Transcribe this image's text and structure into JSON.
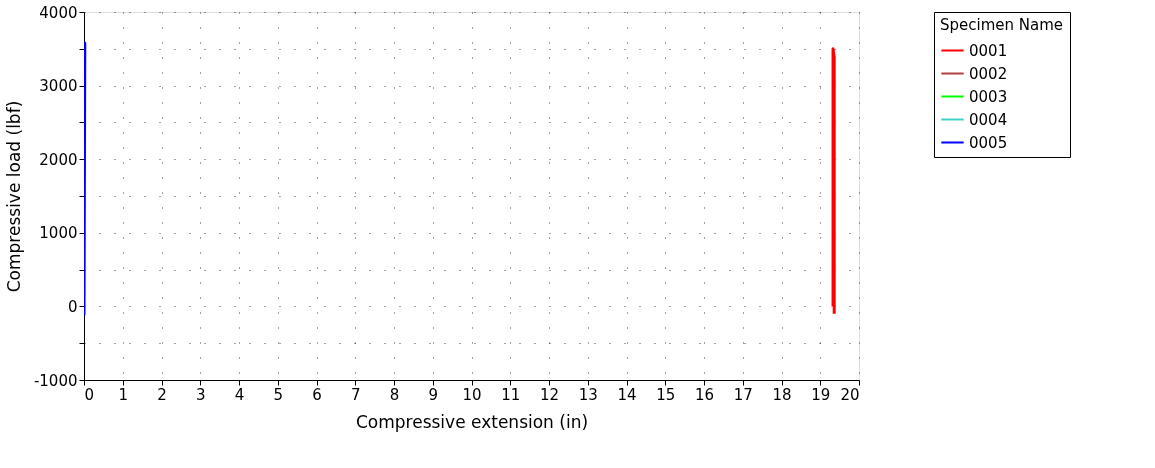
{
  "chart_data": {
    "type": "line",
    "xlabel": "Compressive extension (in)",
    "ylabel": "Compressive load (lbf)",
    "legend_title": "Specimen Name",
    "series": [
      {
        "name": "0001",
        "color": "#ff0000",
        "x": [
          19.33,
          19.33,
          19.36,
          19.36
        ],
        "values": [
          0,
          3500,
          3380,
          -100
        ]
      },
      {
        "name": "0002",
        "color": "#b04040"
      },
      {
        "name": "0003",
        "color": "#00ff00"
      },
      {
        "name": "0004",
        "color": "#40d0c8"
      },
      {
        "name": "0005",
        "color": "#0000ff",
        "x": [
          0.0,
          0.02,
          0.02
        ],
        "values": [
          -120,
          3580,
          3400
        ]
      }
    ],
    "xlim": [
      0,
      20
    ],
    "xticks": [
      0,
      1,
      2,
      3,
      4,
      5,
      6,
      7,
      8,
      9,
      10,
      11,
      12,
      13,
      14,
      15,
      16,
      17,
      18,
      19,
      20
    ],
    "ylim": [
      -1000,
      4000
    ],
    "yticks": [
      -1000,
      {
        "value": -500,
        "label": null
      },
      0,
      {
        "value": 500,
        "label": null
      },
      1000,
      {
        "value": 1500,
        "label": null
      },
      2000,
      {
        "value": 2500,
        "label": null
      },
      3000,
      {
        "value": 3500,
        "label": null
      },
      4000
    ],
    "grid": true,
    "legend": "right",
    "marker": "none",
    "line_style": "solid"
  }
}
